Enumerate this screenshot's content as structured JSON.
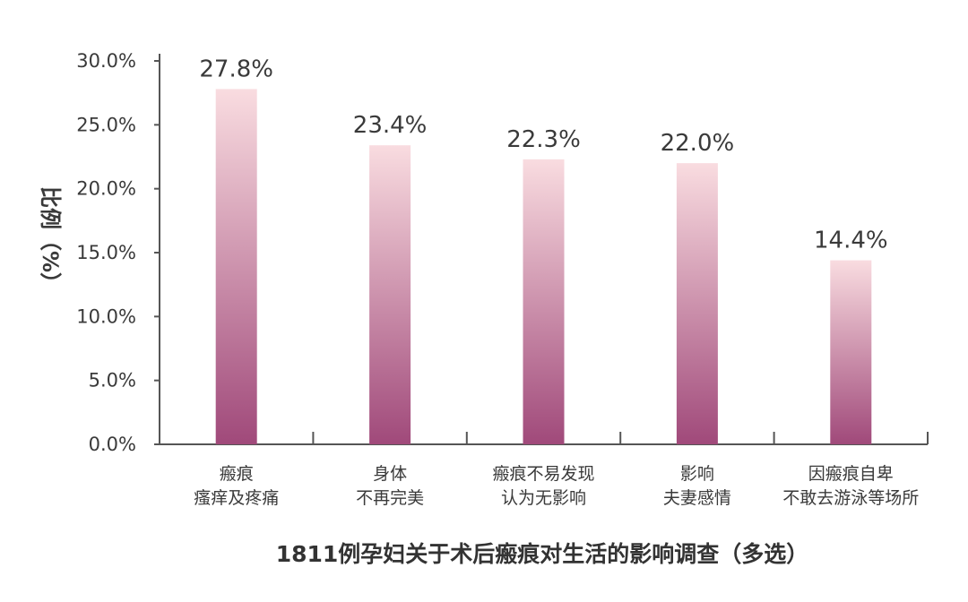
{
  "chart_data": {
    "type": "bar",
    "title": "1811例孕妇关于术后瘢痕对生活的影响调查（多选）",
    "ylabel": "比例（%）",
    "xlabel": "",
    "ylim": [
      0,
      30
    ],
    "yticks": [
      0,
      5,
      10,
      15,
      20,
      25,
      30
    ],
    "ytick_labels": [
      "0.0%",
      "5.0%",
      "10.0%",
      "15.0%",
      "20.0%",
      "25.0%",
      "30.0%"
    ],
    "categories": [
      [
        "瘢痕",
        "瘙痒及疼痛"
      ],
      [
        "身体",
        "不再完美"
      ],
      [
        "瘢痕不易发现",
        "认为无影响"
      ],
      [
        "影响",
        "夫妻感情"
      ],
      [
        "因瘢痕自卑",
        "不敢去游泳等场所"
      ]
    ],
    "values": [
      27.8,
      23.4,
      22.3,
      22.0,
      14.4
    ],
    "data_labels": [
      "27.8%",
      "23.4%",
      "22.3%",
      "22.0%",
      "14.4%"
    ],
    "grid": false,
    "legend": "none",
    "colors": {
      "bar_top": "#f9dce0",
      "bar_bottom": "#a0497a",
      "text": "#3a3a3a",
      "axis": "#555555"
    }
  }
}
